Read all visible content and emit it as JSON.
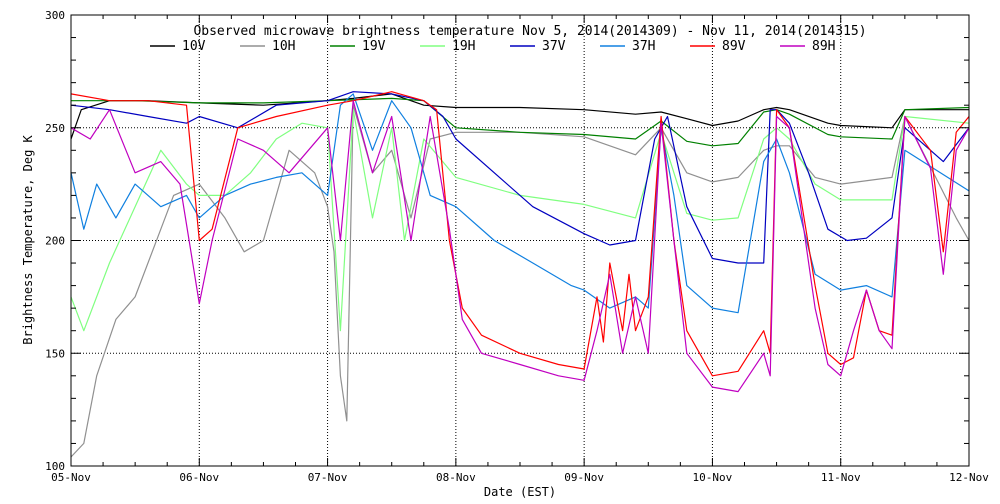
{
  "chart_data": {
    "type": "line",
    "title": "Observed microwave brightness temperature Nov  5, 2014(2014309) - Nov 11, 2014(2014315)",
    "xlabel": "Date (EST)",
    "ylabel": "Brightness Temperature, Deg K",
    "xlim": [
      0,
      7
    ],
    "ylim": [
      100,
      300
    ],
    "x_ticks": [
      {
        "x": 0,
        "label": "05-Nov"
      },
      {
        "x": 1,
        "label": "06-Nov"
      },
      {
        "x": 2,
        "label": "07-Nov"
      },
      {
        "x": 3,
        "label": "08-Nov"
      },
      {
        "x": 4,
        "label": "09-Nov"
      },
      {
        "x": 5,
        "label": "10-Nov"
      },
      {
        "x": 6,
        "label": "11-Nov"
      },
      {
        "x": 7,
        "label": "12-Nov"
      }
    ],
    "y_ticks": [
      100,
      150,
      200,
      250,
      300
    ],
    "grid": "dotted",
    "legend_position": "top",
    "series": [
      {
        "name": "10V",
        "color": "#000000",
        "x": [
          0,
          0.08,
          0.3,
          0.6,
          1,
          1.5,
          2,
          2.2,
          2.5,
          2.75,
          3,
          3.5,
          4,
          4.4,
          4.6,
          4.8,
          5,
          5.2,
          5.4,
          5.5,
          5.6,
          5.9,
          6,
          6.4,
          6.5,
          7
        ],
        "y": [
          245,
          258,
          262,
          262,
          261,
          260,
          262,
          263,
          265,
          260,
          259,
          259,
          258,
          256,
          257,
          254,
          251,
          253,
          258,
          259,
          258,
          252,
          251,
          250,
          258,
          258
        ]
      },
      {
        "name": "10H",
        "color": "#909090",
        "x": [
          0,
          0.1,
          0.2,
          0.35,
          0.5,
          0.7,
          0.8,
          1,
          1.2,
          1.35,
          1.5,
          1.7,
          1.9,
          2,
          2.05,
          2.1,
          2.15,
          2.2,
          2.35,
          2.5,
          2.65,
          2.8,
          3,
          3.5,
          4,
          4.4,
          4.6,
          4.8,
          5,
          5.2,
          5.4,
          5.5,
          5.6,
          5.8,
          6,
          6.4,
          6.5,
          6.9,
          7
        ],
        "y": [
          104,
          110,
          140,
          165,
          175,
          205,
          220,
          225,
          210,
          195,
          200,
          240,
          230,
          215,
          195,
          140,
          120,
          260,
          230,
          240,
          210,
          245,
          248,
          248,
          246,
          238,
          250,
          230,
          226,
          228,
          240,
          242,
          242,
          228,
          225,
          228,
          255,
          210,
          200
        ]
      },
      {
        "name": "19V",
        "color": "#008000",
        "x": [
          0,
          0.5,
          1,
          1.5,
          2,
          2.5,
          2.75,
          3,
          3.5,
          4,
          4.4,
          4.6,
          4.8,
          5,
          5.2,
          5.4,
          5.5,
          5.6,
          5.9,
          6,
          6.4,
          6.5,
          7
        ],
        "y": [
          262,
          262,
          261,
          261,
          262,
          263,
          262,
          250,
          248,
          247,
          245,
          253,
          244,
          242,
          243,
          257,
          258,
          256,
          247,
          246,
          245,
          258,
          259
        ]
      },
      {
        "name": "19H",
        "color": "#80ff80",
        "x": [
          0,
          0.1,
          0.3,
          0.5,
          0.7,
          0.9,
          1,
          1.2,
          1.4,
          1.6,
          1.8,
          2,
          2.1,
          2.2,
          2.35,
          2.5,
          2.6,
          2.75,
          3,
          3.5,
          4,
          4.4,
          4.6,
          4.8,
          5,
          5.2,
          5.4,
          5.5,
          5.6,
          5.8,
          6,
          6.4,
          6.5,
          7
        ],
        "y": [
          175,
          160,
          190,
          215,
          240,
          225,
          220,
          220,
          230,
          245,
          252,
          250,
          160,
          258,
          210,
          250,
          200,
          245,
          228,
          220,
          216,
          210,
          248,
          212,
          209,
          210,
          245,
          250,
          245,
          225,
          218,
          218,
          255,
          252
        ]
      },
      {
        "name": "37V",
        "color": "#0000c0",
        "x": [
          0,
          0.3,
          0.6,
          0.9,
          1,
          1.3,
          1.6,
          2,
          2.2,
          2.5,
          2.75,
          2.9,
          3,
          3.3,
          3.6,
          4,
          4.2,
          4.4,
          4.55,
          4.65,
          4.8,
          5,
          5.2,
          5.4,
          5.45,
          5.5,
          5.6,
          5.75,
          5.9,
          6.05,
          6.2,
          6.4,
          6.5,
          6.8,
          7
        ],
        "y": [
          260,
          258,
          255,
          252,
          255,
          250,
          260,
          262,
          266,
          265,
          262,
          255,
          245,
          230,
          215,
          203,
          198,
          200,
          245,
          255,
          215,
          192,
          190,
          190,
          258,
          258,
          252,
          230,
          205,
          200,
          201,
          210,
          250,
          235,
          250
        ]
      },
      {
        "name": "37H",
        "color": "#1080e0",
        "x": [
          0,
          0.1,
          0.2,
          0.35,
          0.5,
          0.7,
          0.9,
          1,
          1.2,
          1.4,
          1.6,
          1.8,
          2,
          2.1,
          2.2,
          2.35,
          2.5,
          2.65,
          2.8,
          3,
          3.3,
          3.6,
          3.9,
          4,
          4.2,
          4.4,
          4.5,
          4.6,
          4.7,
          4.8,
          5,
          5.2,
          5.4,
          5.5,
          5.6,
          5.8,
          6,
          6.2,
          6.4,
          6.5,
          7
        ],
        "y": [
          230,
          205,
          225,
          210,
          225,
          215,
          220,
          210,
          220,
          225,
          228,
          230,
          220,
          260,
          265,
          240,
          262,
          250,
          220,
          215,
          200,
          190,
          180,
          178,
          170,
          175,
          170,
          250,
          220,
          180,
          170,
          168,
          235,
          245,
          230,
          185,
          178,
          180,
          175,
          240,
          222
        ]
      },
      {
        "name": "89V",
        "color": "#ff0000",
        "x": [
          0,
          0.3,
          0.6,
          0.9,
          1,
          1.1,
          1.3,
          1.6,
          2,
          2.2,
          2.5,
          2.75,
          2.85,
          2.95,
          3.05,
          3.2,
          3.5,
          3.8,
          4,
          4.1,
          4.15,
          4.2,
          4.3,
          4.35,
          4.4,
          4.5,
          4.6,
          4.7,
          4.8,
          5,
          5.2,
          5.4,
          5.45,
          5.5,
          5.6,
          5.7,
          5.8,
          5.9,
          6,
          6.1,
          6.2,
          6.3,
          6.4,
          6.5,
          6.7,
          6.8,
          6.9,
          7
        ],
        "y": [
          265,
          262,
          262,
          260,
          200,
          205,
          250,
          255,
          260,
          262,
          266,
          262,
          258,
          200,
          170,
          158,
          150,
          145,
          143,
          175,
          155,
          190,
          160,
          185,
          160,
          175,
          255,
          200,
          160,
          140,
          142,
          160,
          150,
          258,
          250,
          215,
          180,
          150,
          145,
          148,
          178,
          160,
          158,
          255,
          240,
          195,
          248,
          255
        ]
      },
      {
        "name": "89H",
        "color": "#c000c0",
        "x": [
          0,
          0.15,
          0.3,
          0.5,
          0.7,
          0.85,
          1,
          1.1,
          1.3,
          1.5,
          1.7,
          2,
          2.1,
          2.2,
          2.35,
          2.5,
          2.65,
          2.8,
          2.95,
          3.05,
          3.2,
          3.5,
          3.8,
          4,
          4.1,
          4.2,
          4.3,
          4.4,
          4.5,
          4.6,
          4.7,
          4.8,
          5,
          5.2,
          5.4,
          5.45,
          5.5,
          5.6,
          5.7,
          5.8,
          5.9,
          6,
          6.1,
          6.2,
          6.3,
          6.4,
          6.5,
          6.7,
          6.8,
          6.9,
          7
        ],
        "y": [
          250,
          245,
          258,
          230,
          235,
          225,
          172,
          200,
          245,
          240,
          230,
          250,
          200,
          262,
          230,
          255,
          200,
          255,
          205,
          165,
          150,
          145,
          140,
          138,
          160,
          185,
          150,
          175,
          150,
          252,
          200,
          150,
          135,
          133,
          150,
          140,
          255,
          250,
          210,
          170,
          145,
          140,
          160,
          178,
          160,
          152,
          255,
          232,
          185,
          240,
          250
        ]
      }
    ]
  }
}
